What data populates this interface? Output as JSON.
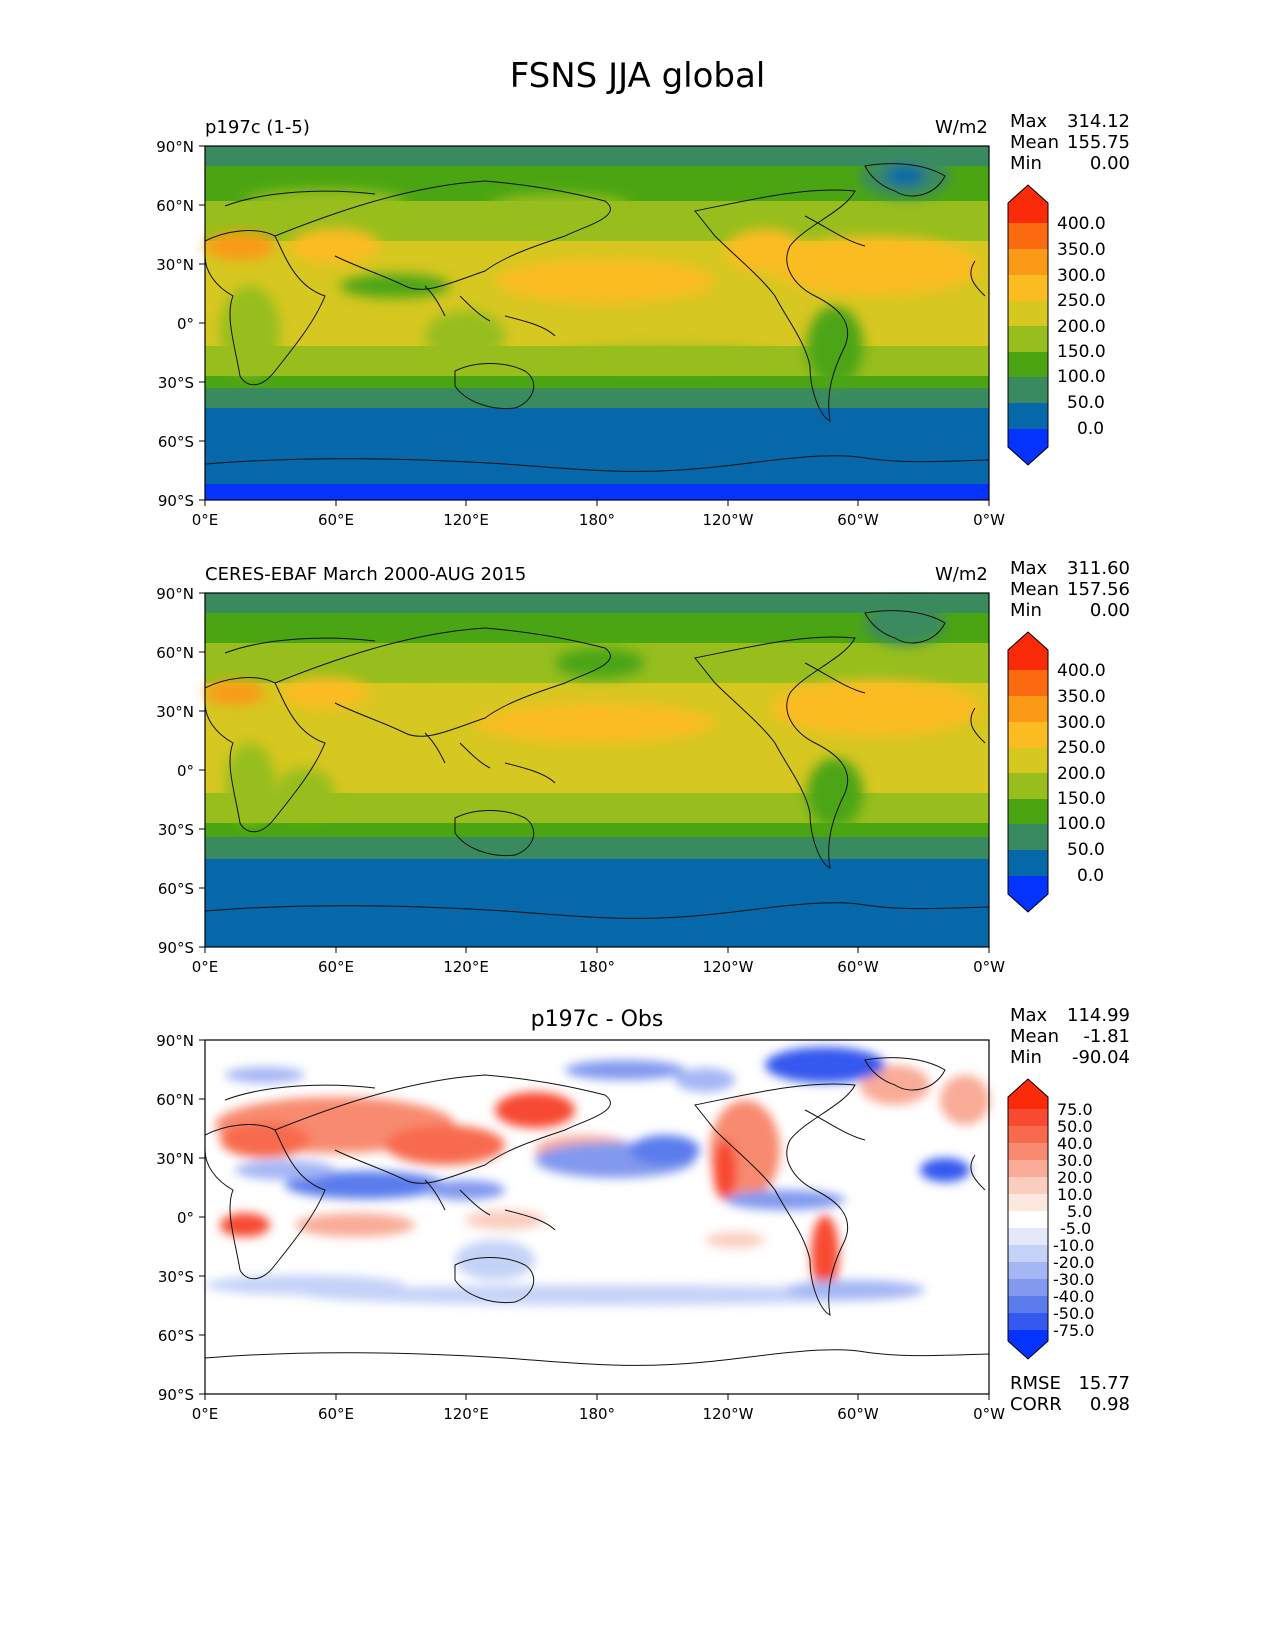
{
  "title": "FSNS JJA global",
  "x_ticks": [
    "0°E",
    "60°E",
    "120°E",
    "180°",
    "120°W",
    "60°W",
    "0°W"
  ],
  "y_ticks": [
    "90°N",
    "60°N",
    "30°N",
    "0°",
    "30°S",
    "60°S",
    "90°S"
  ],
  "panels": [
    {
      "left_title": "p197c (1-5)",
      "center_title": "",
      "units": "W/m2",
      "stats": [
        {
          "label": "Max",
          "value": "314.12"
        },
        {
          "label": "Mean",
          "value": "155.75"
        },
        {
          "label": "Min",
          "value": "0.00"
        }
      ],
      "colorbar": {
        "labels": [
          "400.0",
          "350.0",
          "300.0",
          "250.0",
          "200.0",
          "150.0",
          "100.0",
          "50.0",
          "0.0"
        ],
        "colors": [
          "#fb2b0a",
          "#fa6a10",
          "#fa9a16",
          "#fbbc22",
          "#d6c721",
          "#97be1c",
          "#4ba513",
          "#3a8a60",
          "#0668a8",
          "#0433ff"
        ]
      },
      "footer_stats": []
    },
    {
      "left_title": "CERES-EBAF March 2000-AUG 2015",
      "center_title": "",
      "units": "W/m2",
      "stats": [
        {
          "label": "Max",
          "value": "311.60"
        },
        {
          "label": "Mean",
          "value": "157.56"
        },
        {
          "label": "Min",
          "value": "0.00"
        }
      ],
      "colorbar": {
        "labels": [
          "400.0",
          "350.0",
          "300.0",
          "250.0",
          "200.0",
          "150.0",
          "100.0",
          "50.0",
          "0.0"
        ],
        "colors": [
          "#fb2b0a",
          "#fa6a10",
          "#fa9a16",
          "#fbbc22",
          "#d6c721",
          "#97be1c",
          "#4ba513",
          "#3a8a60",
          "#0668a8",
          "#0433ff"
        ]
      },
      "footer_stats": []
    },
    {
      "left_title": "",
      "center_title": "p197c - Obs",
      "units": "",
      "stats": [
        {
          "label": "Max",
          "value": "114.99"
        },
        {
          "label": "Mean",
          "value": "-1.81"
        },
        {
          "label": "Min",
          "value": "-90.04"
        }
      ],
      "colorbar": {
        "labels": [
          "75.0",
          "50.0",
          "40.0",
          "30.0",
          "20.0",
          "10.0",
          "5.0",
          "-5.0",
          "-10.0",
          "-20.0",
          "-30.0",
          "-40.0",
          "-50.0",
          "-75.0"
        ],
        "colors": [
          "#fb2b0a",
          "#f84a30",
          "#f86a4e",
          "#f88a70",
          "#f9ab97",
          "#fbcdbf",
          "#fde8e0",
          "#ffffff",
          "#e3e9fb",
          "#c5d2f8",
          "#a4b6f4",
          "#8199ef",
          "#5a7cec",
          "#3559ee",
          "#0433ff"
        ]
      },
      "footer_stats": [
        {
          "label": "RMSE",
          "value": "15.77"
        },
        {
          "label": "CORR",
          "value": "0.98"
        }
      ]
    }
  ]
}
